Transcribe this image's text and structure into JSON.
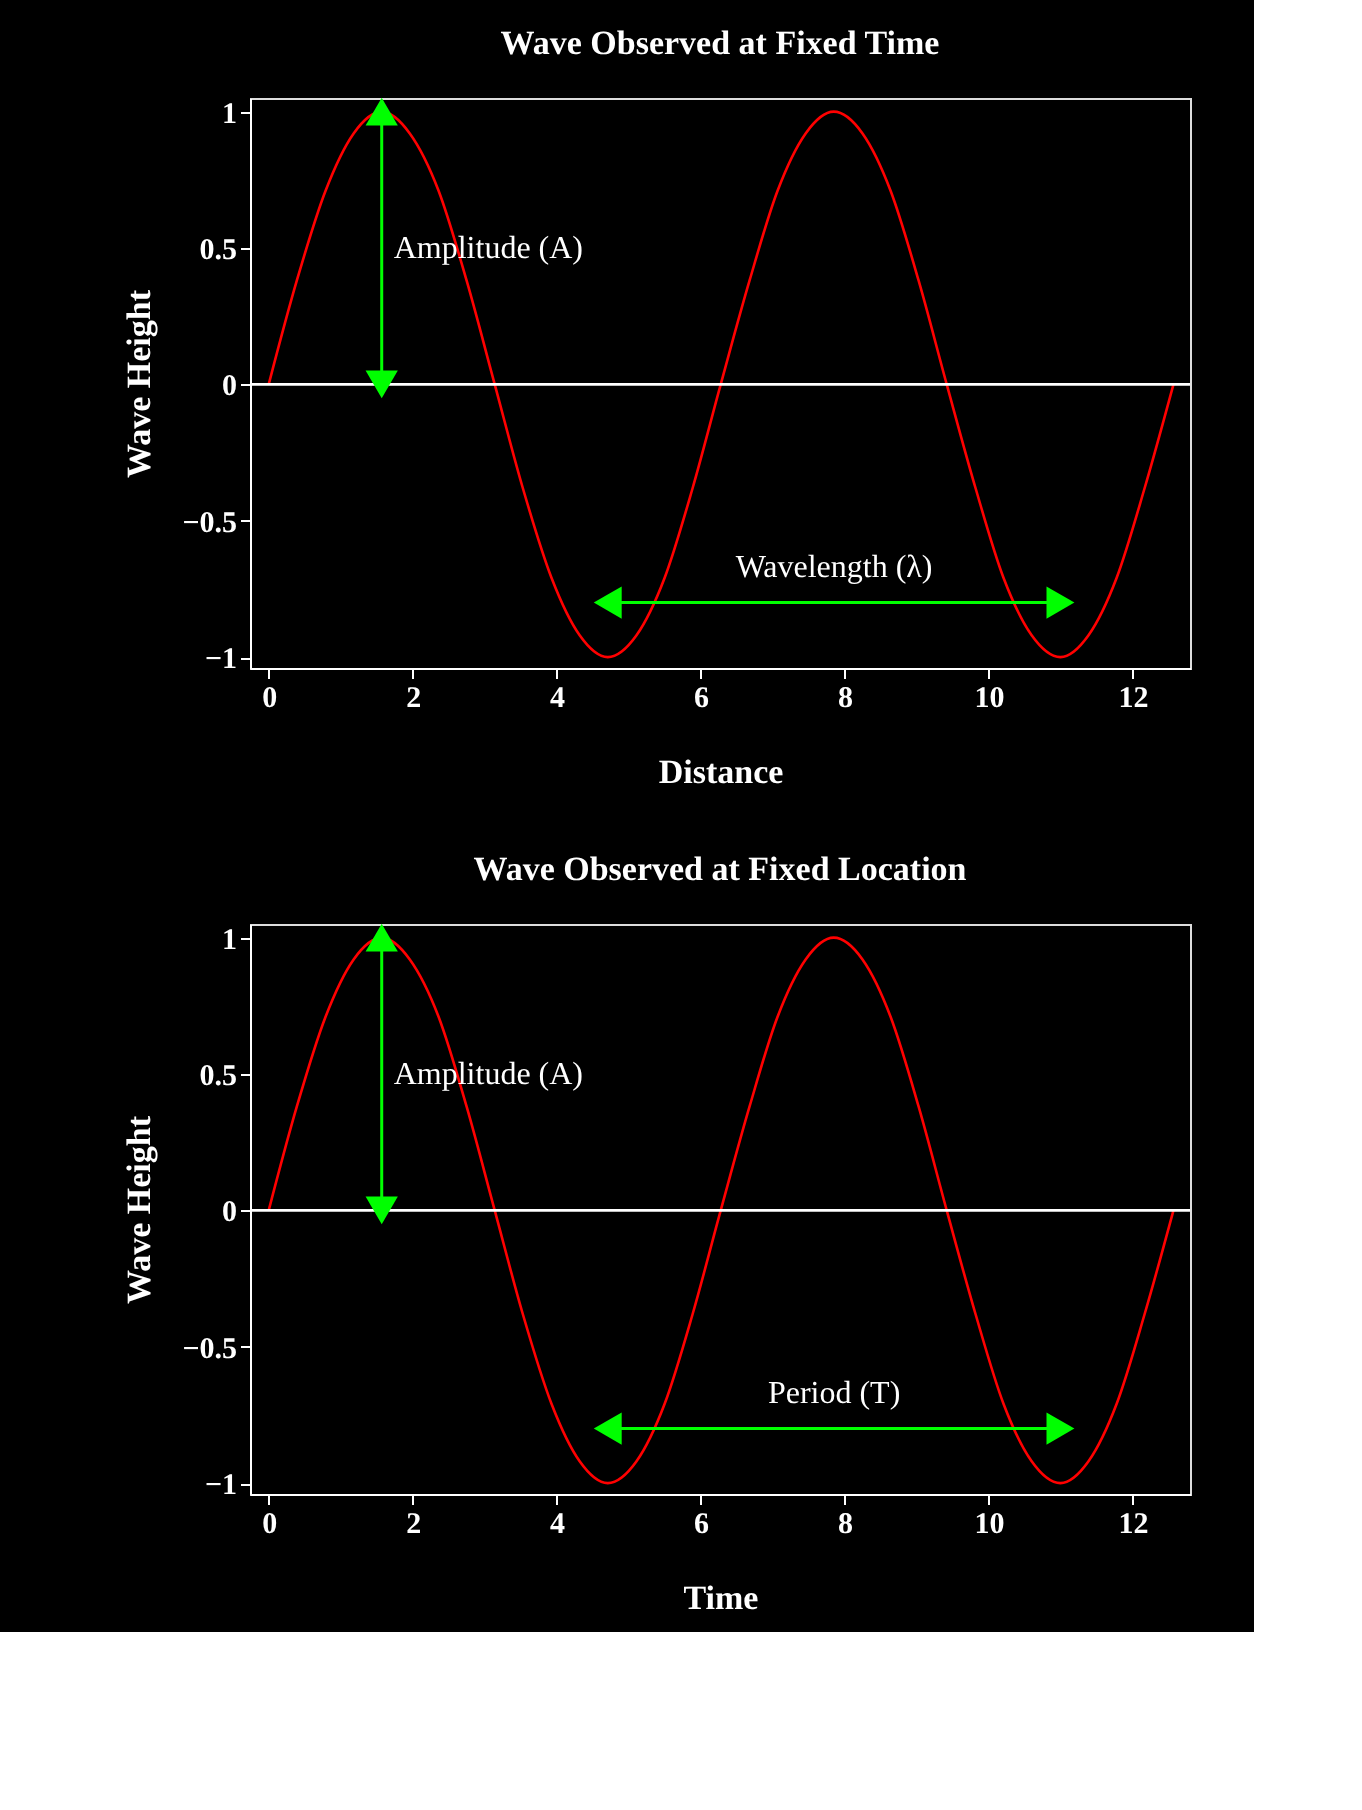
{
  "chart_data": [
    {
      "type": "line",
      "title": "Wave Observed at Fixed Time",
      "xlabel": "Distance",
      "ylabel": "Wave Height",
      "x": [
        0,
        0.39,
        0.79,
        1.18,
        1.57,
        1.96,
        2.36,
        2.75,
        3.14,
        3.53,
        3.93,
        4.32,
        4.71,
        5.11,
        5.5,
        5.89,
        6.28,
        6.68,
        7.07,
        7.46,
        7.85,
        8.25,
        8.64,
        9.03,
        9.42,
        9.82,
        10.21,
        10.6,
        11.0,
        11.39,
        11.78,
        12.17,
        12.57
      ],
      "series": [
        {
          "color": "#ff0000",
          "values": [
            0,
            0.38,
            0.71,
            0.92,
            1,
            0.92,
            0.71,
            0.38,
            0,
            -0.38,
            -0.71,
            -0.92,
            -1,
            -0.92,
            -0.71,
            -0.38,
            0,
            0.38,
            0.71,
            0.92,
            1,
            0.92,
            0.71,
            0.38,
            0,
            -0.38,
            -0.71,
            -0.92,
            -1,
            -0.92,
            -0.71,
            -0.38,
            0
          ]
        }
      ],
      "xlim": [
        -0.26,
        12.8
      ],
      "ylim": [
        -1.04,
        1.05
      ],
      "xticks": [
        0,
        2,
        4,
        6,
        8,
        10,
        12
      ],
      "yticks": [
        -1,
        -0.5,
        0,
        0.5,
        1
      ],
      "ref_lines": [
        {
          "axis": "y",
          "value": 0,
          "color": "#ffffff"
        }
      ],
      "annotations": [
        "Amplitude (A)",
        "Wavelength (λ)"
      ]
    },
    {
      "type": "line",
      "title": "Wave Observed at Fixed Location",
      "xlabel": "Time",
      "ylabel": "Wave Height",
      "x": [
        0,
        0.39,
        0.79,
        1.18,
        1.57,
        1.96,
        2.36,
        2.75,
        3.14,
        3.53,
        3.93,
        4.32,
        4.71,
        5.11,
        5.5,
        5.89,
        6.28,
        6.68,
        7.07,
        7.46,
        7.85,
        8.25,
        8.64,
        9.03,
        9.42,
        9.82,
        10.21,
        10.6,
        11.0,
        11.39,
        11.78,
        12.17,
        12.57
      ],
      "series": [
        {
          "color": "#ff0000",
          "values": [
            0,
            0.38,
            0.71,
            0.92,
            1,
            0.92,
            0.71,
            0.38,
            0,
            -0.38,
            -0.71,
            -0.92,
            -1,
            -0.92,
            -0.71,
            -0.38,
            0,
            0.38,
            0.71,
            0.92,
            1,
            0.92,
            0.71,
            0.38,
            0,
            -0.38,
            -0.71,
            -0.92,
            -1,
            -0.92,
            -0.71,
            -0.38,
            0
          ]
        }
      ],
      "xlim": [
        -0.26,
        12.8
      ],
      "ylim": [
        -1.04,
        1.05
      ],
      "xticks": [
        0,
        2,
        4,
        6,
        8,
        10,
        12
      ],
      "yticks": [
        -1,
        -0.5,
        0,
        0.5,
        1
      ],
      "ref_lines": [
        {
          "axis": "y",
          "value": 0,
          "color": "#ffffff"
        }
      ],
      "annotations": [
        "Amplitude (A)",
        "Period (T)"
      ]
    }
  ]
}
